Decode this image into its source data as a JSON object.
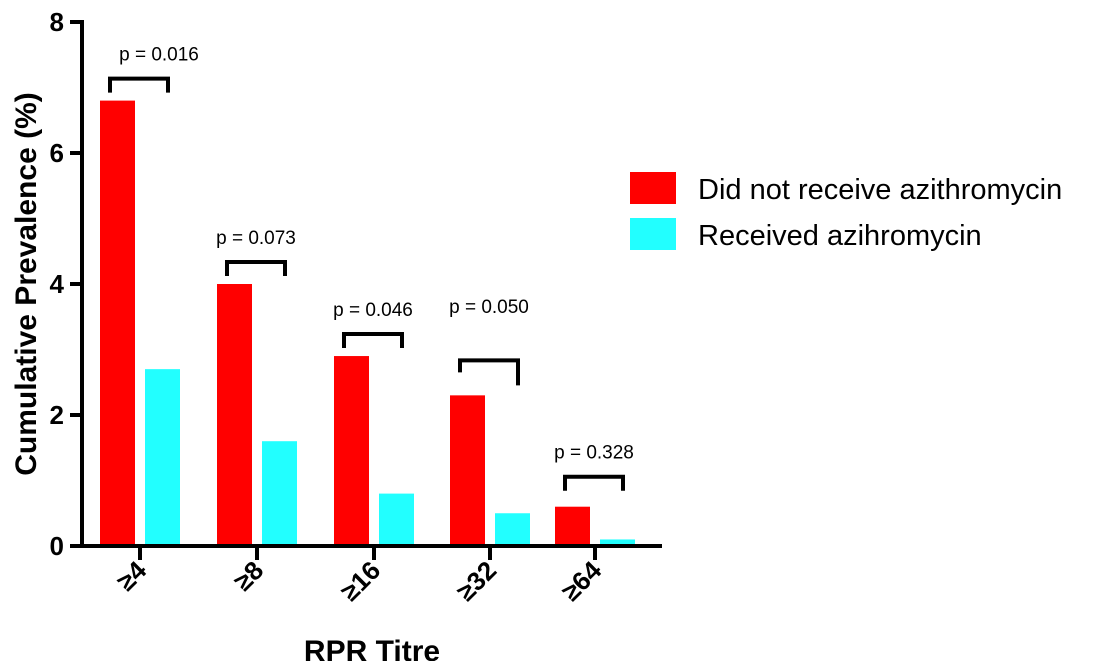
{
  "chart_data": {
    "type": "bar",
    "xlabel": "RPR Titre",
    "ylabel": "Cumulative Prevalence (%)",
    "ylim": [
      0,
      8
    ],
    "yticks": [
      0,
      2,
      4,
      6,
      8
    ],
    "categories": [
      "≥4",
      "≥8",
      "≥16",
      "≥32",
      "≥64"
    ],
    "series": [
      {
        "name": "Did not receive azithromycin",
        "color": "#ff0000",
        "values": [
          6.8,
          4.0,
          2.9,
          2.3,
          0.6
        ]
      },
      {
        "name": "Received azihromycin",
        "color": "#22ffff",
        "values": [
          2.7,
          1.6,
          0.8,
          0.5,
          0.1
        ]
      }
    ],
    "annotations": [
      {
        "text": "p = 0.016",
        "category": 0
      },
      {
        "text": "p = 0.073",
        "category": 1
      },
      {
        "text": "p = 0.046",
        "category": 2
      },
      {
        "text": "p = 0.050",
        "category": 3
      },
      {
        "text": "p = 0.328",
        "category": 4
      }
    ],
    "grid": false,
    "legend": "right"
  }
}
